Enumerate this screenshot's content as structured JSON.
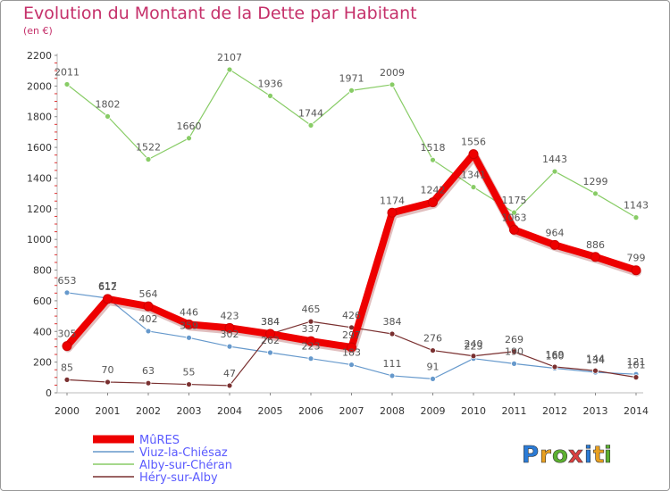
{
  "header": {
    "title": "Evolution du Montant de la Dette par Habitant",
    "subtitle": "(en €)"
  },
  "logo": {
    "letters": [
      "P",
      "r",
      "o",
      "x",
      "i",
      "t",
      "i"
    ],
    "colors": [
      "#2b7bd6",
      "#e8a020",
      "#5cb030",
      "#d94040",
      "#2b7bd6",
      "#e8a020",
      "#5cb030"
    ]
  },
  "chart_data": {
    "type": "line",
    "title": "Evolution du Montant de la Dette par Habitant",
    "subtitle": "(en €)",
    "xlabel": "",
    "ylabel": "",
    "ylim": [
      0,
      2200
    ],
    "yticks": [
      0,
      200,
      400,
      600,
      800,
      1000,
      1200,
      1400,
      1600,
      1800,
      2000,
      2200
    ],
    "x": [
      "2000",
      "2001",
      "2002",
      "2003",
      "2004",
      "2005",
      "2006",
      "2007",
      "2008",
      "2009",
      "2010",
      "2011",
      "2012",
      "2013",
      "2014"
    ],
    "grid": false,
    "legend_position": "bottom-left",
    "series": [
      {
        "name": "MûRES",
        "color": "#ee0000",
        "values": [
          305,
          612,
          564,
          446,
          423,
          384,
          337,
          297,
          1174,
          1242,
          1556,
          1063,
          964,
          886,
          799
        ]
      },
      {
        "name": "Viuz-la-Chiésaz",
        "color": "#6699cc",
        "values": [
          653,
          617,
          402,
          359,
          302,
          262,
          223,
          183,
          111,
          91,
          223,
          190,
          160,
          134,
          121
        ]
      },
      {
        "name": "Alby-sur-Chéran",
        "color": "#88cc66",
        "values": [
          2011,
          1802,
          1522,
          1660,
          2107,
          1936,
          1744,
          1971,
          2009,
          1518,
          1341,
          1175,
          1443,
          1299,
          1143
        ]
      },
      {
        "name": "Héry-sur-Alby",
        "color": "#7a3030",
        "values": [
          85,
          70,
          63,
          55,
          47,
          384,
          465,
          426,
          384,
          276,
          240,
          269,
          169,
          144,
          101
        ]
      }
    ]
  }
}
